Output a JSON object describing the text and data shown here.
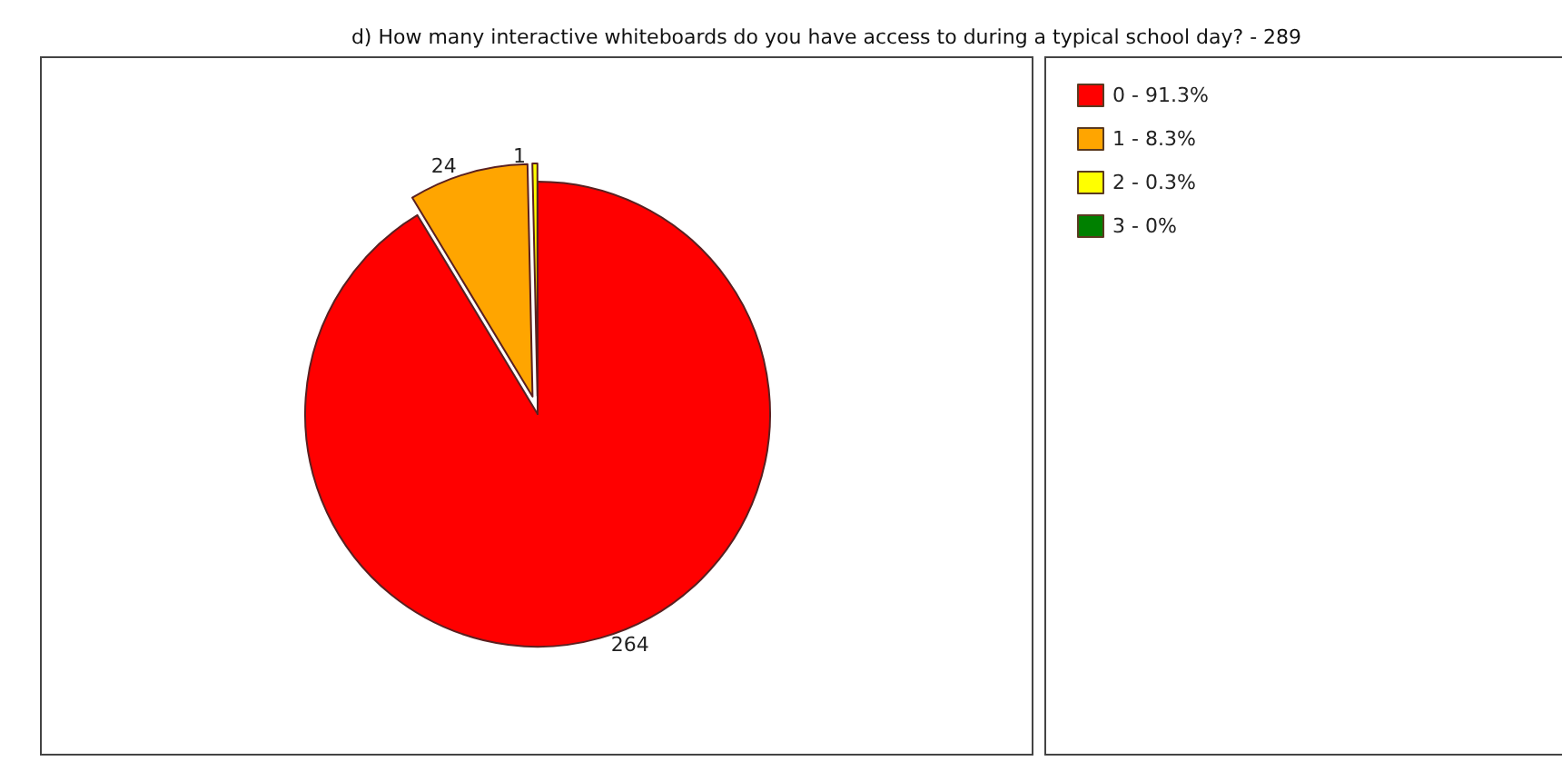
{
  "chart_data": {
    "type": "pie",
    "title": "d) How many interactive whiteboards do you have access to during a typical school day? - 289",
    "categories": [
      "0 - 91.3%",
      "1 - 8.3%",
      "2 - 0.3%",
      "3 - 0%"
    ],
    "values": [
      264,
      24,
      1,
      0
    ],
    "colors": [
      "#ff0000",
      "#ffa500",
      "#ffff00",
      "#008000"
    ],
    "value_labels": [
      "264",
      "24",
      "1",
      null
    ],
    "legend": "right"
  }
}
